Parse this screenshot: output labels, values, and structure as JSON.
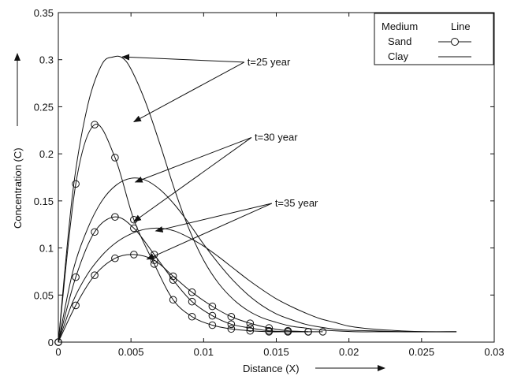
{
  "chart_data": {
    "type": "line",
    "title": "",
    "xlabel": "Distance (X)",
    "ylabel": "Concentration (C)",
    "xlim": [
      0,
      0.03
    ],
    "ylim": [
      0,
      0.35
    ],
    "xticks": [
      0,
      0.005,
      0.01,
      0.015,
      0.02,
      0.025,
      0.03
    ],
    "xtick_labels": [
      "0",
      "0.005",
      "0.01",
      "0.015",
      "0.02",
      "0.025",
      "0.03"
    ],
    "yticks": [
      0,
      0.05,
      0.1,
      0.15,
      0.2,
      0.25,
      0.3,
      0.35
    ],
    "ytick_labels": [
      "0",
      "0.05",
      "0.1",
      "0.15",
      "0.2",
      "0.25",
      "0.3",
      "0.35"
    ],
    "grid": false,
    "legend": {
      "placement": "top-right",
      "header_medium": "Medium",
      "header_line": "Line",
      "entries": [
        {
          "label": "Sand",
          "marker": "circle"
        },
        {
          "label": "Clay",
          "marker": "none"
        }
      ]
    },
    "series": [
      {
        "name": "Sand",
        "group": "t=25 year",
        "marker": "circle",
        "x": [
          0,
          0.0012,
          0.0025,
          0.0039,
          0.0052,
          0.0066,
          0.0079,
          0.0092,
          0.0106,
          0.0119,
          0.0132,
          0.0145,
          0.0158,
          0.0172,
          0.0182
        ],
        "y": [
          0,
          0.168,
          0.231,
          0.196,
          0.13,
          0.083,
          0.045,
          0.027,
          0.018,
          0.014,
          0.012,
          0.011,
          0.011,
          0.011,
          0.011
        ]
      },
      {
        "name": "Sand",
        "group": "t=30 year",
        "marker": "circle",
        "x": [
          0,
          0.0012,
          0.0025,
          0.0039,
          0.0052,
          0.0066,
          0.0079,
          0.0092,
          0.0106,
          0.0119,
          0.0132,
          0.0145,
          0.0158,
          0.0172
        ],
        "y": [
          0,
          0.069,
          0.117,
          0.133,
          0.121,
          0.093,
          0.066,
          0.043,
          0.028,
          0.019,
          0.015,
          0.012,
          0.011,
          0.011
        ]
      },
      {
        "name": "Sand",
        "group": "t=35 year",
        "marker": "circle",
        "x": [
          0,
          0.0012,
          0.0025,
          0.0039,
          0.0052,
          0.0066,
          0.0079,
          0.0092,
          0.0106,
          0.0119,
          0.0132,
          0.0145,
          0.0158,
          0.0172
        ],
        "y": [
          0,
          0.039,
          0.071,
          0.089,
          0.093,
          0.087,
          0.07,
          0.053,
          0.038,
          0.027,
          0.02,
          0.015,
          0.012,
          0.011
        ]
      },
      {
        "name": "Clay",
        "group": "t=25 year",
        "marker": "none",
        "x": [
          0,
          0.001,
          0.002,
          0.003,
          0.0038,
          0.0044,
          0.005,
          0.006,
          0.007,
          0.008,
          0.009,
          0.01,
          0.011,
          0.012,
          0.013,
          0.014,
          0.015,
          0.016,
          0.017,
          0.018,
          0.019,
          0.0205,
          0.0225,
          0.025,
          0.0274
        ],
        "y": [
          0,
          0.16,
          0.25,
          0.295,
          0.303,
          0.302,
          0.29,
          0.255,
          0.21,
          0.162,
          0.12,
          0.087,
          0.063,
          0.046,
          0.034,
          0.026,
          0.021,
          0.017,
          0.015,
          0.013,
          0.012,
          0.011,
          0.011,
          0.011,
          0.011
        ]
      },
      {
        "name": "Clay",
        "group": "t=30 year",
        "marker": "none",
        "x": [
          0,
          0.001,
          0.002,
          0.003,
          0.004,
          0.005,
          0.006,
          0.007,
          0.008,
          0.009,
          0.01,
          0.011,
          0.012,
          0.013,
          0.014,
          0.015,
          0.016,
          0.017,
          0.018,
          0.0195,
          0.0215,
          0.024,
          0.0274
        ],
        "y": [
          0,
          0.075,
          0.12,
          0.15,
          0.167,
          0.174,
          0.172,
          0.162,
          0.146,
          0.126,
          0.104,
          0.084,
          0.066,
          0.051,
          0.039,
          0.03,
          0.024,
          0.019,
          0.016,
          0.013,
          0.012,
          0.011,
          0.011
        ]
      },
      {
        "name": "Clay",
        "group": "t=35 year",
        "marker": "none",
        "x": [
          0,
          0.001,
          0.002,
          0.003,
          0.004,
          0.005,
          0.006,
          0.007,
          0.008,
          0.009,
          0.01,
          0.011,
          0.012,
          0.013,
          0.014,
          0.015,
          0.016,
          0.017,
          0.018,
          0.019,
          0.02,
          0.0215,
          0.0235,
          0.0255,
          0.0274
        ],
        "y": [
          0,
          0.043,
          0.072,
          0.092,
          0.106,
          0.115,
          0.12,
          0.121,
          0.118,
          0.111,
          0.102,
          0.091,
          0.079,
          0.067,
          0.056,
          0.046,
          0.038,
          0.031,
          0.025,
          0.021,
          0.017,
          0.014,
          0.012,
          0.011,
          0.011
        ]
      }
    ],
    "annotations": [
      {
        "text": "t=25 year",
        "at": [
          0.0129,
          0.294
        ],
        "arrows_to": [
          [
            0.0052,
            0.234
          ],
          [
            0.0044,
            0.303
          ]
        ]
      },
      {
        "text": "t=30 year",
        "at": [
          0.0134,
          0.214
        ],
        "arrows_to": [
          [
            0.0052,
            0.128
          ],
          [
            0.0053,
            0.17
          ]
        ]
      },
      {
        "text": "t=35 year",
        "at": [
          0.0148,
          0.144
        ],
        "arrows_to": [
          [
            0.0061,
            0.088
          ],
          [
            0.0067,
            0.118
          ]
        ]
      }
    ],
    "x_arrow": "→",
    "y_arrow": "↑"
  }
}
